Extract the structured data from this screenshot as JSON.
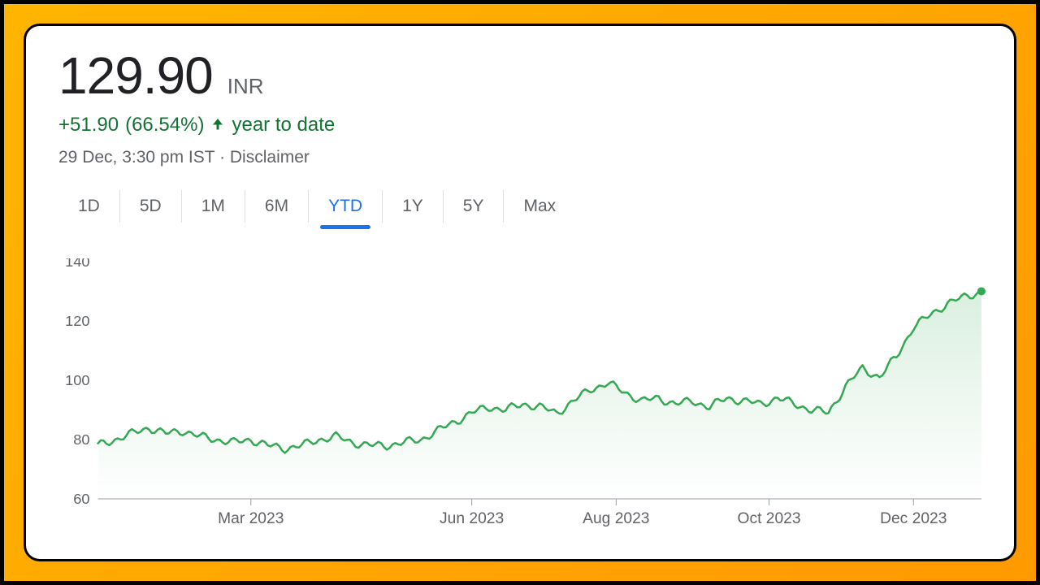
{
  "price": "129.90",
  "currency": "INR",
  "change_abs": "+51.90",
  "change_pct": "(66.54%)",
  "change_suffix": "year to date",
  "change_color": "#137333",
  "timestamp": "29 Dec, 3:30 pm IST",
  "disclaimer": "Disclaimer",
  "tabs": {
    "items": [
      "1D",
      "5D",
      "1M",
      "6M",
      "YTD",
      "1Y",
      "5Y",
      "Max"
    ],
    "active_index": 4,
    "active_color": "#1a73e8"
  },
  "chart": {
    "type": "line",
    "line_color": "#34a853",
    "line_width": 2.5,
    "fill_gradient_top": "rgba(52,168,83,0.18)",
    "fill_gradient_bottom": "rgba(52,168,83,0.00)",
    "endpoint_marker_color": "#34a853",
    "endpoint_marker_radius": 5,
    "axis_color": "#9aa0a6",
    "label_color": "#5f6368",
    "ylim": [
      60,
      140
    ],
    "yticks": [
      60,
      80,
      100,
      120,
      140
    ],
    "ytick_fontsize": 18,
    "xtick_fontsize": 19,
    "x_range": [
      0,
      52
    ],
    "x_month_marks": [
      {
        "x": 9,
        "label": "Mar 2023"
      },
      {
        "x": 22,
        "label": "Jun 2023"
      },
      {
        "x": 30.5,
        "label": "Aug 2023"
      },
      {
        "x": 39.5,
        "label": "Oct 2023"
      },
      {
        "x": 48,
        "label": "Dec 2023"
      }
    ],
    "series_weekly": [
      78,
      80,
      82,
      84,
      82,
      83,
      81,
      80,
      79,
      80,
      78,
      77,
      78,
      80,
      81,
      79,
      78,
      78,
      79,
      80,
      83,
      86,
      89,
      91,
      90,
      92,
      91,
      89,
      93,
      97,
      99,
      96,
      93,
      94,
      92,
      93,
      91,
      94,
      93,
      92,
      94,
      92,
      90,
      89,
      98,
      104,
      101,
      108,
      118,
      122,
      126,
      128,
      130
    ]
  }
}
